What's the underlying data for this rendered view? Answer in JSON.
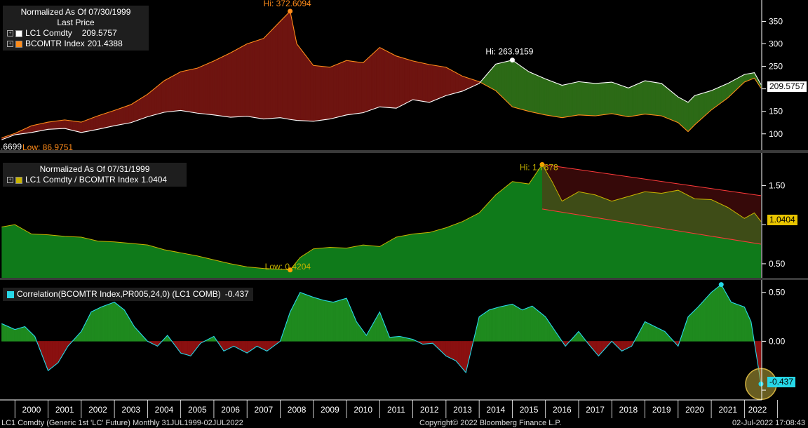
{
  "panels": {
    "top": {
      "legend_title_1": "Normalized As Of 07/30/1999",
      "legend_title_2": "Last Price",
      "series_1_name": "LC1 Comdty",
      "series_1_value": "209.5757",
      "series_2_name": "BCOMTR Index",
      "series_2_value": "201.4388",
      "hi_label": "Hi: 372.6094",
      "hi2_label": "Hi: 263.9159",
      "low_label": "Low: 86.9751",
      "left_cut_label": ".6699",
      "last_tag": "209.5757"
    },
    "middle": {
      "legend_title": "Normalized As Of 07/31/1999",
      "series_name": "LC1 Comdty / BCOMTR Index",
      "series_value": "1.0404",
      "hi_label": "Hi: 1.7678",
      "low_label": "Low: 0.4204",
      "last_tag": "1.0404"
    },
    "bottom": {
      "series_name": "Correlation(BCOMTR Index,PR005,24,0) (LC1 COMB)",
      "series_value": "-0.437",
      "last_tag": "-0.437"
    }
  },
  "footer": {
    "left": "LC1 Comdty (Generic 1st 'LC' Future)  Monthly 31JUL1999-02JUL2022",
    "center": "Copyright© 2022 Bloomberg Finance L.P.",
    "right": "02-Jul-2022 17:08:43"
  },
  "colors": {
    "background": "#000000",
    "lc1_line": "#ffffff",
    "bcomtr_line": "#ff8c1a",
    "red_fill": "#6e1410",
    "green_fill": "#2c6a16",
    "ratio_fill": "#0f7a1a",
    "ratio_line": "#c8b400",
    "trend_channel": "#ff3a3a",
    "corr_line": "#27d8e8",
    "corr_pos": "#1f8a1f",
    "corr_neg": "#8a1010",
    "hi_marker": "#ffa000"
  },
  "chart_data": [
    {
      "type": "line",
      "title": "LC1 Comdty vs BCOMTR Index (Normalized As Of 07/30/1999)",
      "x": [
        1999.6,
        2000.0,
        2000.5,
        2001.0,
        2001.5,
        2002.0,
        2002.5,
        2003.0,
        2003.5,
        2004.0,
        2004.5,
        2005.0,
        2005.5,
        2006.0,
        2006.5,
        2007.0,
        2007.5,
        2008.0,
        2008.3,
        2008.5,
        2009.0,
        2009.5,
        2010.0,
        2010.5,
        2011.0,
        2011.5,
        2012.0,
        2012.5,
        2013.0,
        2013.5,
        2014.0,
        2014.5,
        2015.0,
        2015.5,
        2016.0,
        2016.5,
        2017.0,
        2017.5,
        2018.0,
        2018.5,
        2019.0,
        2019.5,
        2020.0,
        2020.3,
        2020.5,
        2021.0,
        2021.5,
        2022.0,
        2022.3,
        2022.5
      ],
      "series": [
        {
          "name": "LC1 Comdty",
          "values": [
            86.97,
            98,
            103,
            110,
            112,
            103,
            110,
            118,
            125,
            138,
            148,
            152,
            146,
            142,
            137,
            139,
            133,
            136,
            132,
            130,
            128,
            133,
            142,
            147,
            160,
            157,
            176,
            170,
            185,
            195,
            212,
            255,
            263.9,
            238,
            222,
            208,
            216,
            212,
            215,
            202,
            218,
            212,
            182,
            170,
            185,
            196,
            212,
            232,
            236,
            209.58
          ]
        },
        {
          "name": "BCOMTR Index",
          "values": [
            91,
            101,
            118,
            126,
            131,
            126,
            140,
            152,
            165,
            188,
            218,
            238,
            246,
            262,
            280,
            300,
            312,
            350,
            372.61,
            300,
            252,
            248,
            263,
            258,
            292,
            273,
            262,
            254,
            248,
            228,
            216,
            196,
            160,
            150,
            142,
            136,
            142,
            140,
            145,
            138,
            144,
            140,
            125,
            105,
            120,
            153,
            180,
            215,
            224,
            201.44
          ]
        }
      ],
      "ylim": [
        70,
        385
      ],
      "yticks": [
        100,
        150,
        200,
        250,
        300,
        350
      ]
    },
    {
      "type": "area",
      "title": "LC1 Comdty / BCOMTR Index (Normalized As Of 07/31/1999)",
      "x": [
        1999.6,
        2000.0,
        2000.5,
        2001.0,
        2001.5,
        2002.0,
        2002.5,
        2003.0,
        2003.5,
        2004.0,
        2004.5,
        2005.0,
        2005.5,
        2006.0,
        2006.5,
        2007.0,
        2007.5,
        2008.0,
        2008.3,
        2008.6,
        2009.0,
        2009.5,
        2010.0,
        2010.5,
        2011.0,
        2011.5,
        2012.0,
        2012.5,
        2013.0,
        2013.5,
        2014.0,
        2014.5,
        2015.0,
        2015.5,
        2015.9,
        2016.2,
        2016.5,
        2017.0,
        2017.5,
        2018.0,
        2018.5,
        2019.0,
        2019.5,
        2020.0,
        2020.5,
        2021.0,
        2021.5,
        2022.0,
        2022.3,
        2022.5
      ],
      "series": [
        {
          "name": "LC1 Comdty / BCOMTR Index",
          "values": [
            0.97,
            1.0,
            0.88,
            0.87,
            0.85,
            0.84,
            0.79,
            0.78,
            0.76,
            0.74,
            0.68,
            0.64,
            0.6,
            0.55,
            0.5,
            0.46,
            0.44,
            0.43,
            0.4204,
            0.58,
            0.69,
            0.71,
            0.7,
            0.74,
            0.72,
            0.84,
            0.88,
            0.9,
            0.96,
            1.04,
            1.15,
            1.38,
            1.55,
            1.52,
            1.7678,
            1.55,
            1.3,
            1.42,
            1.38,
            1.3,
            1.36,
            1.42,
            1.4,
            1.44,
            1.33,
            1.32,
            1.22,
            1.08,
            1.15,
            1.0404
          ]
        }
      ],
      "trend_channel": {
        "x": [
          2015.9,
          2022.5
        ],
        "upper": [
          1.77,
          1.37
        ],
        "lower": [
          1.2,
          0.75
        ]
      },
      "ylim": [
        0.32,
        1.88
      ],
      "yticks": [
        0.5,
        1.0,
        1.5
      ],
      "ytick_labels": [
        "0.50",
        "",
        "1.50"
      ]
    },
    {
      "type": "area",
      "title": "Correlation(BCOMTR Index,PR005,24,0) (LC1 COMB)",
      "x": [
        1999.6,
        2000.0,
        2000.3,
        2000.6,
        2001.0,
        2001.3,
        2001.6,
        2002.0,
        2002.3,
        2002.6,
        2003.0,
        2003.3,
        2003.6,
        2004.0,
        2004.3,
        2004.6,
        2005.0,
        2005.3,
        2005.6,
        2006.0,
        2006.3,
        2006.6,
        2007.0,
        2007.3,
        2007.6,
        2008.0,
        2008.3,
        2008.6,
        2009.0,
        2009.3,
        2009.6,
        2010.0,
        2010.3,
        2010.6,
        2011.0,
        2011.3,
        2011.6,
        2012.0,
        2012.3,
        2012.6,
        2013.0,
        2013.3,
        2013.6,
        2014.0,
        2014.3,
        2014.6,
        2015.0,
        2015.3,
        2015.6,
        2016.0,
        2016.3,
        2016.6,
        2017.0,
        2017.3,
        2017.6,
        2018.0,
        2018.3,
        2018.6,
        2019.0,
        2019.3,
        2019.6,
        2020.0,
        2020.3,
        2020.6,
        2021.0,
        2021.3,
        2021.6,
        2022.0,
        2022.2,
        2022.5
      ],
      "series": [
        {
          "name": "Correlation",
          "values": [
            0.18,
            0.12,
            0.15,
            0.05,
            -0.3,
            -0.22,
            -0.05,
            0.1,
            0.3,
            0.35,
            0.4,
            0.32,
            0.15,
            0.0,
            -0.05,
            0.06,
            -0.12,
            -0.15,
            -0.02,
            0.05,
            -0.1,
            -0.05,
            -0.12,
            -0.05,
            -0.1,
            0.0,
            0.3,
            0.5,
            0.45,
            0.42,
            0.4,
            0.44,
            0.2,
            0.06,
            0.3,
            0.04,
            0.05,
            0.02,
            -0.03,
            -0.02,
            -0.15,
            -0.2,
            -0.32,
            0.25,
            0.32,
            0.35,
            0.38,
            0.32,
            0.36,
            0.25,
            0.1,
            -0.05,
            0.1,
            -0.03,
            -0.15,
            0.0,
            -0.1,
            -0.05,
            0.2,
            0.15,
            0.1,
            -0.05,
            0.25,
            0.35,
            0.5,
            0.58,
            0.4,
            0.35,
            0.2,
            -0.437
          ]
        }
      ],
      "ylim": [
        -0.6,
        0.62
      ],
      "yticks": [
        0.5,
        0.0,
        -0.5
      ],
      "ytick_labels": [
        "0.50",
        "0.00",
        ""
      ]
    }
  ],
  "xaxis": {
    "years": [
      "2000",
      "2001",
      "2002",
      "2003",
      "2004",
      "2005",
      "2006",
      "2007",
      "2008",
      "2009",
      "2010",
      "2011",
      "2012",
      "2013",
      "2014",
      "2015",
      "2016",
      "2017",
      "2018",
      "2019",
      "2020",
      "2021",
      "2022"
    ],
    "range": [
      1999.55,
      2022.5
    ]
  }
}
